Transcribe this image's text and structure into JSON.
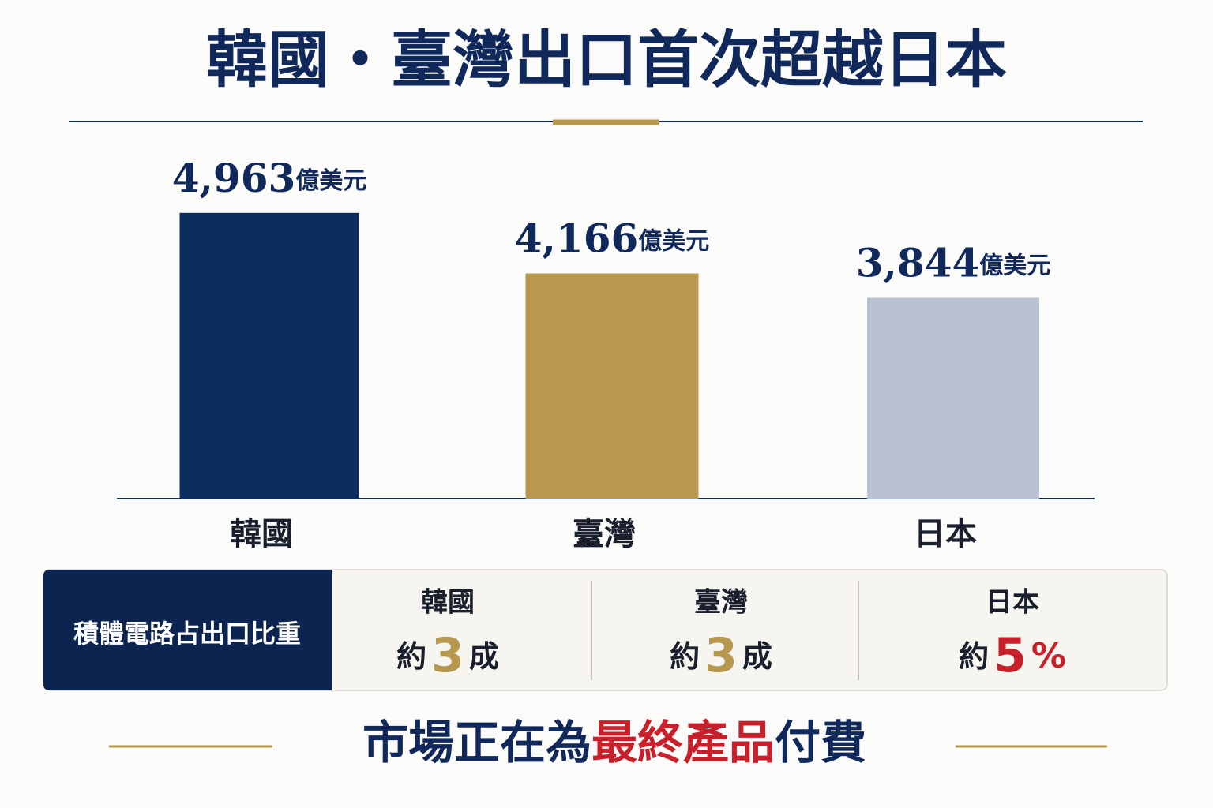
{
  "chart_data": {
    "type": "bar",
    "title": "韓國・臺灣出口首次超越日本",
    "categories": [
      "韓國",
      "臺灣",
      "日本"
    ],
    "values": [
      4963,
      4166,
      3844
    ],
    "value_labels": [
      "4,963",
      "4,166",
      "3,844"
    ],
    "unit": "億美元",
    "colors": [
      "#0b2d5e",
      "#b8974e",
      "#b9c2d0"
    ],
    "ylim": [
      1200,
      5200
    ]
  },
  "share_table": {
    "label": "積體電路占出口比重",
    "cells": [
      {
        "country": "韓國",
        "prefix": "約",
        "value": "3",
        "suffix": "成"
      },
      {
        "country": "臺灣",
        "prefix": "約",
        "value": "3",
        "suffix": "成"
      },
      {
        "country": "日本",
        "prefix": "約",
        "value": "5",
        "suffix": "%"
      }
    ]
  },
  "footer": {
    "parts": [
      "市場正在為",
      "最終產品",
      "付費"
    ]
  }
}
